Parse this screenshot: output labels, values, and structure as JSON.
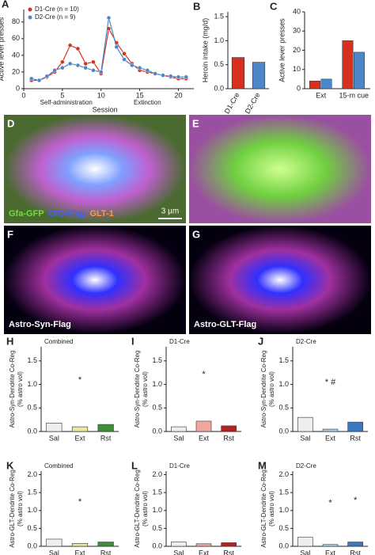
{
  "chart_data": [
    {
      "panel": "A",
      "type": "line",
      "ylabel": "Active lever presses",
      "xlabel": "Session",
      "phase_labels": [
        "Self-administration",
        "Extinction"
      ],
      "x": [
        1,
        2,
        3,
        4,
        5,
        6,
        7,
        8,
        9,
        10,
        11,
        12,
        13,
        14,
        15,
        16,
        17,
        18,
        19,
        20,
        21
      ],
      "series": [
        {
          "name": "D1-Cre (n = 10)",
          "color": "#d7301f",
          "values": [
            10,
            10,
            14,
            20,
            32,
            52,
            48,
            30,
            32,
            18,
            72,
            55,
            42,
            30,
            22,
            20,
            18,
            16,
            14,
            12,
            12
          ]
        },
        {
          "name": "D2-Cre (n = 9)",
          "color": "#4a86c8",
          "values": [
            12,
            10,
            15,
            22,
            25,
            30,
            28,
            25,
            22,
            20,
            85,
            50,
            35,
            28,
            25,
            22,
            18,
            16,
            15,
            14,
            14
          ]
        }
      ],
      "xlim": [
        0,
        22
      ],
      "xticks": [
        0,
        5,
        10,
        15,
        20
      ],
      "ylim": [
        0,
        95
      ],
      "yticks": [
        0,
        20,
        40,
        60,
        80
      ],
      "legend": "top-left"
    },
    {
      "panel": "B",
      "type": "bar",
      "ylabel": "Heroin intake (mg/d)",
      "categories": [
        "D1-Cre",
        "D2-Cre"
      ],
      "values": [
        0.65,
        0.55
      ],
      "colors": [
        "#d7301f",
        "#4a86c8"
      ],
      "ylim": [
        0,
        1.6
      ],
      "yticks": [
        {
          "value": 0,
          "label": "0.0"
        },
        0.5,
        {
          "value": 1,
          "label": "1.0"
        },
        1.5
      ]
    },
    {
      "panel": "C",
      "type": "bar",
      "ylabel": "Active lever presses",
      "categories": [
        "Ext",
        "15-m cue"
      ],
      "series": [
        {
          "name": "D1-Cre",
          "color": "#d7301f",
          "values": [
            4,
            25
          ]
        },
        {
          "name": "D2-Cre",
          "color": "#4a86c8",
          "values": [
            5,
            19
          ]
        }
      ],
      "ylim": [
        0,
        40
      ],
      "yticks": [
        0,
        10,
        20,
        30,
        40
      ]
    },
    {
      "panel": "H",
      "type": "bar",
      "title": "Combined",
      "ylabel": [
        "Astro-Syn-Dendrite Co-Reg",
        "(% astro vol)"
      ],
      "categories": [
        "Sal",
        "Ext",
        "Rst"
      ],
      "values": [
        0.18,
        0.1,
        0.15
      ],
      "colors": [
        "#eeeeee",
        "#e8e6a0",
        "#3f8f3a"
      ],
      "value_annotations": [
        null,
        "*",
        null
      ],
      "ylim": [
        0,
        1.8
      ],
      "yticks": [
        {
          "value": 0,
          "label": "0.0"
        },
        0.5,
        {
          "value": 1,
          "label": "1.0"
        },
        1.5
      ]
    },
    {
      "panel": "I",
      "type": "bar",
      "title": "D1-Cre",
      "ylabel": [
        "Astro-Syn-Dendrite Co-Reg",
        "(% astro vol)"
      ],
      "categories": [
        "Sal",
        "Ext",
        "Rst"
      ],
      "values": [
        0.1,
        0.22,
        0.12
      ],
      "colors": [
        "#eeeeee",
        "#f2a6a0",
        "#b22222"
      ],
      "value_annotations": [
        null,
        "*",
        null
      ],
      "ylim": [
        0,
        1.8
      ],
      "yticks": [
        {
          "value": 0,
          "label": "0.0"
        },
        0.5,
        {
          "value": 1,
          "label": "1.0"
        },
        1.5
      ]
    },
    {
      "panel": "J",
      "type": "bar",
      "title": "D2-Cre",
      "ylabel": [
        "Astro-Syn-Dendrite Co-Reg",
        "(% astro vol)"
      ],
      "categories": [
        "Sal",
        "Ext",
        "Rst"
      ],
      "values": [
        0.3,
        0.05,
        0.2
      ],
      "colors": [
        "#eeeeee",
        "#a9cfe8",
        "#3a78c2"
      ],
      "value_annotations": [
        null,
        "* #",
        null
      ],
      "ylim": [
        0,
        1.8
      ],
      "yticks": [
        {
          "value": 0,
          "label": "0.0"
        },
        0.5,
        {
          "value": 1,
          "label": "1.0"
        },
        1.5
      ]
    },
    {
      "panel": "K",
      "type": "bar",
      "title": "Combined",
      "ylabel": [
        "Astro-GLT-Dendrite Co-Reg",
        "(% astro vol)"
      ],
      "categories": [
        "Sal",
        "Ext",
        "Rst"
      ],
      "values": [
        0.2,
        0.08,
        0.12
      ],
      "colors": [
        "#eeeeee",
        "#e8e6a0",
        "#3f8f3a"
      ],
      "value_annotations": [
        null,
        "*",
        null
      ],
      "ylim": [
        0,
        2.1
      ],
      "yticks": [
        {
          "value": 0,
          "label": "0.0"
        },
        0.5,
        {
          "value": 1,
          "label": "1.0"
        },
        1.5,
        {
          "value": 2,
          "label": "2.0"
        }
      ]
    },
    {
      "panel": "L",
      "type": "bar",
      "title": "D1-Cre",
      "ylabel": [
        "Astro-GLT-Dendrite Co-Reg",
        "(% astro vol)"
      ],
      "categories": [
        "Sal",
        "Ext",
        "Rst"
      ],
      "values": [
        0.12,
        0.07,
        0.1
      ],
      "colors": [
        "#eeeeee",
        "#f2a6a0",
        "#b22222"
      ],
      "value_annotations": [
        null,
        null,
        null
      ],
      "ylim": [
        0,
        2.1
      ],
      "yticks": [
        {
          "value": 0,
          "label": "0.0"
        },
        0.5,
        {
          "value": 1,
          "label": "1.0"
        },
        1.5,
        {
          "value": 2,
          "label": "2.0"
        }
      ]
    },
    {
      "panel": "M",
      "type": "bar",
      "title": "D2-Cre",
      "ylabel": [
        "Astro-GLT-Dendrite Co-Reg",
        "(% astro vol)"
      ],
      "categories": [
        "Sal",
        "Ext",
        "Rst"
      ],
      "values": [
        0.25,
        0.05,
        0.12
      ],
      "colors": [
        "#eeeeee",
        "#a9cfe8",
        "#3a78c2"
      ],
      "value_annotations": [
        null,
        "*",
        "*"
      ],
      "ylim": [
        0,
        2.1
      ],
      "yticks": [
        {
          "value": 0,
          "label": "0.0"
        },
        0.5,
        {
          "value": 1,
          "label": "1.0"
        },
        1.5,
        {
          "value": 2,
          "label": "2.0"
        }
      ]
    }
  ],
  "images": [
    {
      "panel": "D",
      "labels": [
        {
          "text": "Gfa-GFP",
          "color": "#6fe03a"
        },
        {
          "text": "DIO-Flag",
          "color": "#4060ff"
        },
        {
          "text": "GLT-1",
          "color": "#f0a040"
        }
      ],
      "scale_bar": "3 µm"
    },
    {
      "panel": "E",
      "labels": []
    },
    {
      "panel": "F",
      "labels": [
        {
          "text": "Astro-Syn-Flag",
          "color": "#ffffff"
        }
      ]
    },
    {
      "panel": "G",
      "labels": [
        {
          "text": "Astro-GLT-Flag",
          "color": "#ffffff"
        }
      ]
    }
  ]
}
